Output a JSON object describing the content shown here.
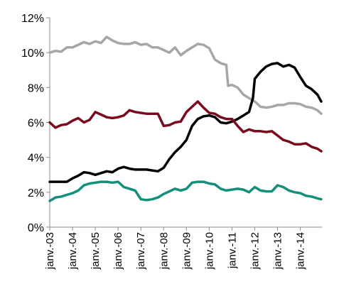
{
  "chart_data": {
    "type": "line",
    "title": "",
    "xlabel": "",
    "ylabel": "",
    "ylim": [
      0,
      12
    ],
    "y_ticks": [
      "0%",
      "2%",
      "4%",
      "6%",
      "8%",
      "10%",
      "12%"
    ],
    "y_tick_values": [
      0,
      2,
      4,
      6,
      8,
      10,
      12
    ],
    "x_range": [
      2003.0,
      2014.95
    ],
    "x_ticks": [
      "janv.-03",
      "janv.-04",
      "janv.-05",
      "janv.-06",
      "janv.-07",
      "janv.-08",
      "janv.-09",
      "janv.-10",
      "janv.-11",
      "janv.-12",
      "janv.-13",
      "janv.-14"
    ],
    "x_tick_values": [
      2003,
      2004,
      2005,
      2006,
      2007,
      2008,
      2009,
      2010,
      2011,
      2012,
      2013,
      2014
    ],
    "grid": false,
    "legend": "none",
    "series": [
      {
        "color": "#a6a6a6",
        "points": [
          [
            2003.0,
            10.0
          ],
          [
            2003.25,
            10.1
          ],
          [
            2003.5,
            10.05
          ],
          [
            2003.75,
            10.3
          ],
          [
            2004.0,
            10.3
          ],
          [
            2004.25,
            10.45
          ],
          [
            2004.5,
            10.6
          ],
          [
            2004.75,
            10.5
          ],
          [
            2005.0,
            10.65
          ],
          [
            2005.25,
            10.55
          ],
          [
            2005.5,
            10.9
          ],
          [
            2005.75,
            10.7
          ],
          [
            2006.0,
            10.55
          ],
          [
            2006.25,
            10.5
          ],
          [
            2006.5,
            10.5
          ],
          [
            2006.75,
            10.6
          ],
          [
            2007.0,
            10.45
          ],
          [
            2007.25,
            10.5
          ],
          [
            2007.5,
            10.3
          ],
          [
            2007.75,
            10.3
          ],
          [
            2008.0,
            10.15
          ],
          [
            2008.25,
            10.0
          ],
          [
            2008.5,
            10.3
          ],
          [
            2008.75,
            9.85
          ],
          [
            2009.0,
            10.1
          ],
          [
            2009.25,
            10.3
          ],
          [
            2009.5,
            10.5
          ],
          [
            2009.75,
            10.45
          ],
          [
            2010.0,
            10.25
          ],
          [
            2010.25,
            9.6
          ],
          [
            2010.5,
            9.4
          ],
          [
            2010.75,
            9.3
          ],
          [
            2010.83,
            8.1
          ],
          [
            2011.0,
            8.15
          ],
          [
            2011.25,
            8.0
          ],
          [
            2011.5,
            7.6
          ],
          [
            2011.75,
            7.4
          ],
          [
            2012.0,
            7.2
          ],
          [
            2012.25,
            6.9
          ],
          [
            2012.5,
            6.85
          ],
          [
            2012.75,
            6.9
          ],
          [
            2013.0,
            7.0
          ],
          [
            2013.25,
            7.0
          ],
          [
            2013.5,
            7.1
          ],
          [
            2013.75,
            7.1
          ],
          [
            2014.0,
            7.05
          ],
          [
            2014.25,
            6.9
          ],
          [
            2014.5,
            6.85
          ],
          [
            2014.75,
            6.7
          ],
          [
            2014.92,
            6.5
          ]
        ]
      },
      {
        "color": "#000000",
        "points": [
          [
            2003.0,
            2.6
          ],
          [
            2003.25,
            2.6
          ],
          [
            2003.5,
            2.6
          ],
          [
            2003.75,
            2.6
          ],
          [
            2004.0,
            2.8
          ],
          [
            2004.25,
            2.95
          ],
          [
            2004.5,
            3.15
          ],
          [
            2004.75,
            3.1
          ],
          [
            2005.0,
            3.0
          ],
          [
            2005.25,
            3.1
          ],
          [
            2005.5,
            3.2
          ],
          [
            2005.75,
            3.15
          ],
          [
            2006.0,
            3.35
          ],
          [
            2006.25,
            3.45
          ],
          [
            2006.5,
            3.35
          ],
          [
            2006.75,
            3.3
          ],
          [
            2007.0,
            3.3
          ],
          [
            2007.25,
            3.3
          ],
          [
            2007.5,
            3.25
          ],
          [
            2007.75,
            3.2
          ],
          [
            2008.0,
            3.4
          ],
          [
            2008.25,
            3.9
          ],
          [
            2008.5,
            4.3
          ],
          [
            2008.75,
            4.6
          ],
          [
            2009.0,
            5.0
          ],
          [
            2009.25,
            5.8
          ],
          [
            2009.5,
            6.2
          ],
          [
            2009.75,
            6.35
          ],
          [
            2010.0,
            6.4
          ],
          [
            2010.25,
            6.3
          ],
          [
            2010.5,
            6.0
          ],
          [
            2010.75,
            5.95
          ],
          [
            2011.0,
            6.05
          ],
          [
            2011.25,
            6.2
          ],
          [
            2011.5,
            6.4
          ],
          [
            2011.75,
            6.6
          ],
          [
            2011.92,
            7.4
          ],
          [
            2012.0,
            8.5
          ],
          [
            2012.25,
            8.9
          ],
          [
            2012.5,
            9.2
          ],
          [
            2012.75,
            9.35
          ],
          [
            2013.0,
            9.4
          ],
          [
            2013.25,
            9.2
          ],
          [
            2013.5,
            9.3
          ],
          [
            2013.75,
            9.15
          ],
          [
            2014.0,
            8.6
          ],
          [
            2014.25,
            8.1
          ],
          [
            2014.5,
            7.9
          ],
          [
            2014.75,
            7.6
          ],
          [
            2014.92,
            7.2
          ]
        ]
      },
      {
        "color": "#7a0a1e",
        "points": [
          [
            2003.0,
            6.0
          ],
          [
            2003.25,
            5.7
          ],
          [
            2003.5,
            5.85
          ],
          [
            2003.75,
            5.9
          ],
          [
            2004.0,
            6.1
          ],
          [
            2004.25,
            6.25
          ],
          [
            2004.5,
            6.0
          ],
          [
            2004.75,
            6.15
          ],
          [
            2005.0,
            6.6
          ],
          [
            2005.25,
            6.45
          ],
          [
            2005.5,
            6.3
          ],
          [
            2005.75,
            6.25
          ],
          [
            2006.0,
            6.3
          ],
          [
            2006.25,
            6.4
          ],
          [
            2006.5,
            6.7
          ],
          [
            2006.75,
            6.6
          ],
          [
            2007.0,
            6.55
          ],
          [
            2007.25,
            6.5
          ],
          [
            2007.5,
            6.5
          ],
          [
            2007.75,
            6.5
          ],
          [
            2008.0,
            5.8
          ],
          [
            2008.25,
            5.85
          ],
          [
            2008.5,
            6.0
          ],
          [
            2008.75,
            6.05
          ],
          [
            2009.0,
            6.6
          ],
          [
            2009.25,
            6.9
          ],
          [
            2009.5,
            7.2
          ],
          [
            2009.75,
            6.85
          ],
          [
            2010.0,
            6.55
          ],
          [
            2010.25,
            6.5
          ],
          [
            2010.5,
            6.3
          ],
          [
            2010.75,
            6.2
          ],
          [
            2011.0,
            6.2
          ],
          [
            2011.25,
            5.8
          ],
          [
            2011.5,
            5.45
          ],
          [
            2011.75,
            5.6
          ],
          [
            2012.0,
            5.5
          ],
          [
            2012.25,
            5.5
          ],
          [
            2012.5,
            5.45
          ],
          [
            2012.75,
            5.5
          ],
          [
            2013.0,
            5.25
          ],
          [
            2013.25,
            5.0
          ],
          [
            2013.5,
            4.9
          ],
          [
            2013.75,
            4.75
          ],
          [
            2014.0,
            4.75
          ],
          [
            2014.25,
            4.8
          ],
          [
            2014.5,
            4.6
          ],
          [
            2014.75,
            4.5
          ],
          [
            2014.92,
            4.35
          ]
        ]
      },
      {
        "color": "#138f7a",
        "points": [
          [
            2003.0,
            1.5
          ],
          [
            2003.25,
            1.7
          ],
          [
            2003.5,
            1.75
          ],
          [
            2003.75,
            1.85
          ],
          [
            2004.0,
            1.95
          ],
          [
            2004.25,
            2.1
          ],
          [
            2004.5,
            2.4
          ],
          [
            2004.75,
            2.5
          ],
          [
            2005.0,
            2.55
          ],
          [
            2005.25,
            2.6
          ],
          [
            2005.5,
            2.6
          ],
          [
            2005.75,
            2.55
          ],
          [
            2006.0,
            2.6
          ],
          [
            2006.25,
            2.3
          ],
          [
            2006.5,
            2.2
          ],
          [
            2006.75,
            2.1
          ],
          [
            2007.0,
            1.6
          ],
          [
            2007.25,
            1.55
          ],
          [
            2007.5,
            1.6
          ],
          [
            2007.75,
            1.7
          ],
          [
            2008.0,
            1.9
          ],
          [
            2008.25,
            2.05
          ],
          [
            2008.5,
            2.2
          ],
          [
            2008.75,
            2.1
          ],
          [
            2009.0,
            2.2
          ],
          [
            2009.25,
            2.55
          ],
          [
            2009.5,
            2.6
          ],
          [
            2009.75,
            2.6
          ],
          [
            2010.0,
            2.5
          ],
          [
            2010.25,
            2.45
          ],
          [
            2010.5,
            2.2
          ],
          [
            2010.75,
            2.1
          ],
          [
            2011.0,
            2.15
          ],
          [
            2011.25,
            2.2
          ],
          [
            2011.5,
            2.15
          ],
          [
            2011.75,
            2.0
          ],
          [
            2012.0,
            2.3
          ],
          [
            2012.25,
            2.1
          ],
          [
            2012.5,
            2.05
          ],
          [
            2012.75,
            2.05
          ],
          [
            2013.0,
            2.4
          ],
          [
            2013.25,
            2.3
          ],
          [
            2013.5,
            2.1
          ],
          [
            2013.75,
            2.0
          ],
          [
            2014.0,
            1.95
          ],
          [
            2014.25,
            1.8
          ],
          [
            2014.5,
            1.75
          ],
          [
            2014.75,
            1.65
          ],
          [
            2014.92,
            1.6
          ]
        ]
      }
    ]
  }
}
